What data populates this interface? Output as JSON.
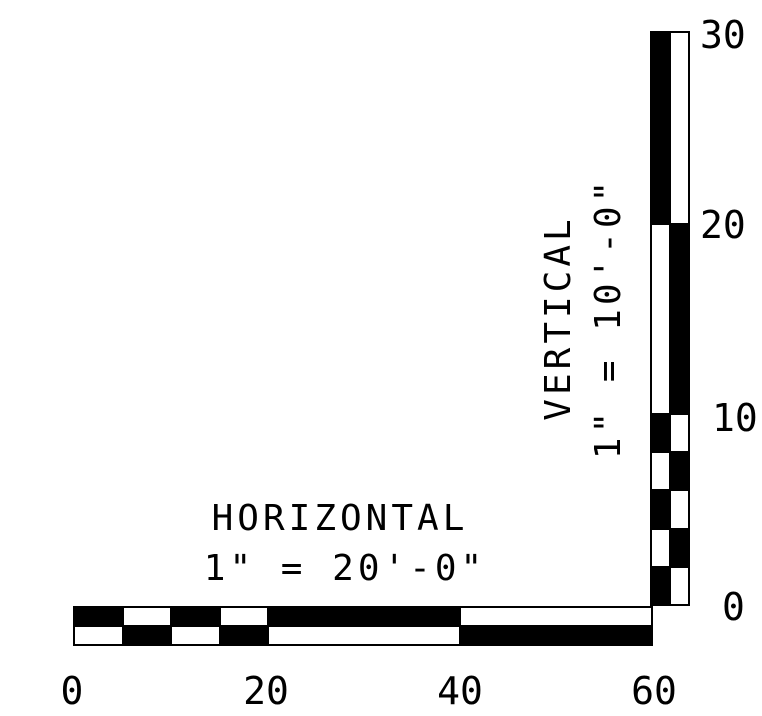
{
  "horizontal_scale": {
    "title": "HORIZONTAL",
    "ratio": "1\" = 20'-0\"",
    "tick_labels": [
      "0",
      "20",
      "40",
      "60"
    ],
    "top_row": [
      "black",
      "white",
      "black",
      "white",
      "black",
      "white"
    ],
    "bottom_row": [
      "white",
      "black",
      "white",
      "black",
      "white",
      "black"
    ]
  },
  "vertical_scale": {
    "title": "VERTICAL",
    "ratio": "1\" = 10'-0\"",
    "tick_labels": [
      "0",
      "10",
      "20",
      "30"
    ],
    "left_column": [
      "black",
      "white",
      "black",
      "white",
      "black",
      "white",
      "black"
    ],
    "right_column": [
      "white",
      "black",
      "white",
      "black",
      "white",
      "black",
      "white"
    ]
  },
  "colors": {
    "ink": "#000000",
    "paper": "#ffffff"
  }
}
